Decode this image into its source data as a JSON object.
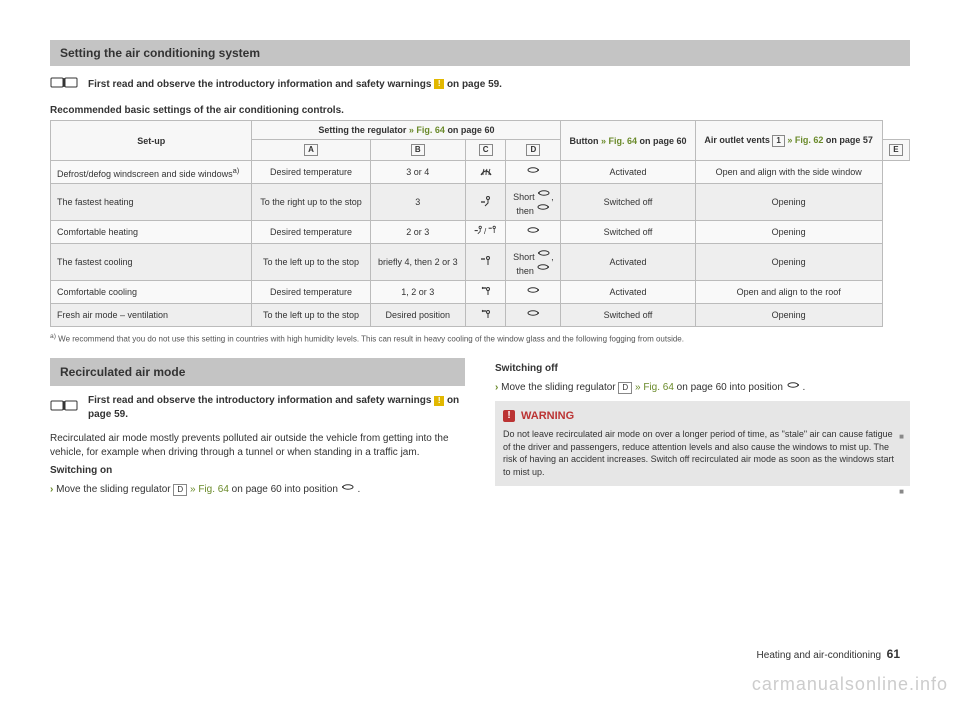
{
  "section1": {
    "title": "Setting the air conditioning system",
    "intro_prefix": "First read and observe the introductory information and safety warnings ",
    "intro_suffix": " on page 59.",
    "subtitle": "Recommended basic settings of the air conditioning controls."
  },
  "table": {
    "headers": {
      "setup": "Set-up",
      "regulator_prefix": "Setting the regulator ",
      "regulator_link": "» Fig. 64",
      "regulator_suffix": " on page 60",
      "button_prefix": "Button ",
      "button_link": "» Fig. 64",
      "button_suffix": " on page 60",
      "vents_prefix": "Air outlet vents ",
      "vents_box": "1",
      "vents_link": " » Fig. 62",
      "vents_suffix": " on page 57",
      "cols": [
        "A",
        "B",
        "C",
        "D",
        "E"
      ]
    },
    "rows": [
      {
        "setup": "Defrost/defog windscreen and side windows",
        "setup_sup": "a)",
        "a": "Desired temperature",
        "b": "3 or 4",
        "c_glyph": "defrost",
        "d_glyph": "recirc-off",
        "e": "Activated",
        "vents": "Open and align with the side window"
      },
      {
        "setup": "The fastest heating",
        "a": "To the right up to the stop",
        "b": "3",
        "c_glyph": "feet",
        "d_text_top": "Short ",
        "d_glyph_top": "recirc-on",
        "d_text_bot": "then ",
        "d_glyph_bot": "recirc-off",
        "e": "Switched off",
        "vents": "Opening"
      },
      {
        "setup": "Comfortable heating",
        "a": "Desired temperature",
        "b": "2 or 3",
        "c_glyph": "feet-face",
        "d_glyph": "recirc-off",
        "e": "Switched off",
        "vents": "Opening"
      },
      {
        "setup": "The fastest cooling",
        "a": "To the left up to the stop",
        "b": "briefly 4, then 2 or 3",
        "c_glyph": "face",
        "d_text_top": "Short ",
        "d_glyph_top": "recirc-on",
        "d_text_bot": "then ",
        "d_glyph_bot": "recirc-off",
        "e": "Activated",
        "vents": "Opening"
      },
      {
        "setup": "Comfortable cooling",
        "a": "Desired temperature",
        "b": "1, 2 or 3",
        "c_glyph": "face-up",
        "d_glyph": "recirc-off",
        "e": "Activated",
        "vents": "Open and align to the roof"
      },
      {
        "setup": "Fresh air mode – ventilation",
        "a": "To the left up to the stop",
        "b": "Desired position",
        "c_glyph": "face-up",
        "d_glyph": "recirc-off",
        "e": "Switched off",
        "vents": "Opening"
      }
    ],
    "footnote_label": "a)",
    "footnote": "We recommend that you do not use this setting in countries with high humidity levels. This can result in heavy cooling of the window glass and the following fogging from outside."
  },
  "section2": {
    "title": "Recirculated air mode",
    "intro_prefix": "First read and observe the introductory information and safety warnings ",
    "intro_suffix": " on page 59.",
    "para1": "Recirculated air mode mostly prevents polluted air outside the vehicle from getting into the vehicle, for example when driving through a tunnel or when standing in a traffic jam.",
    "switch_on_head": "Switching on",
    "switch_on_text_1": "Move the sliding regulator ",
    "switch_on_box": "D",
    "switch_on_link": " » Fig. 64",
    "switch_on_text_2": " on page 60 into position ",
    "switch_off_head": "Switching off",
    "switch_off_text_1": "Move the sliding regulator ",
    "switch_off_box": "D",
    "switch_off_link": " » Fig. 64",
    "switch_off_text_2": " on page 60 into position ",
    "warning_head": "WARNING",
    "warning_body": "Do not leave recirculated air mode on over a longer period of time, as \"stale\" air can cause fatigue of the driver and passengers, reduce attention levels and also cause the windows to mist up. The risk of having an accident increases. Switch off recirculated air mode as soon as the windows start to mist up."
  },
  "footer": {
    "section": "Heating and air-conditioning",
    "page": "61"
  },
  "watermark": "carmanualsonline.info"
}
